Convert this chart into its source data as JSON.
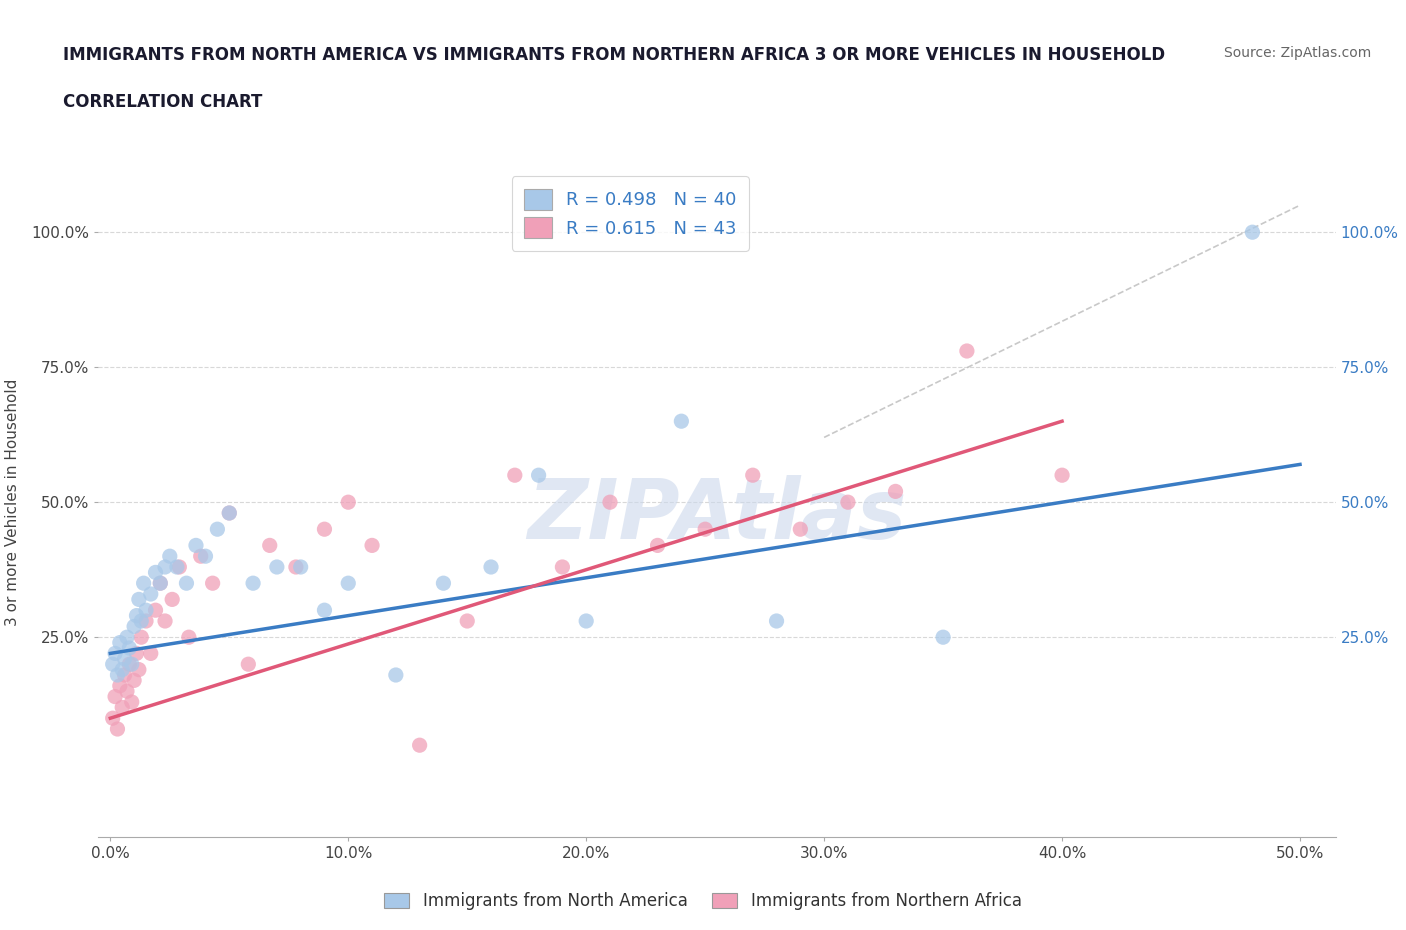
{
  "title_line1": "IMMIGRANTS FROM NORTH AMERICA VS IMMIGRANTS FROM NORTHERN AFRICA 3 OR MORE VEHICLES IN HOUSEHOLD",
  "title_line2": "CORRELATION CHART",
  "source_text": "Source: ZipAtlas.com",
  "ylabel": "3 or more Vehicles in Household",
  "xlim": [
    -0.005,
    0.515
  ],
  "ylim": [
    -0.12,
    1.12
  ],
  "xtick_labels": [
    "0.0%",
    "10.0%",
    "20.0%",
    "30.0%",
    "40.0%",
    "50.0%"
  ],
  "xtick_vals": [
    0.0,
    0.1,
    0.2,
    0.3,
    0.4,
    0.5
  ],
  "ytick_labels": [
    "25.0%",
    "50.0%",
    "75.0%",
    "100.0%"
  ],
  "ytick_vals": [
    0.25,
    0.5,
    0.75,
    1.0
  ],
  "R_blue": 0.498,
  "N_blue": 40,
  "R_pink": 0.615,
  "N_pink": 43,
  "blue_color": "#a8c8e8",
  "pink_color": "#f0a0b8",
  "blue_line_color": "#3a7cc4",
  "pink_line_color": "#e05878",
  "right_tick_color": "#3a7cc4",
  "legend_blue_label": "Immigrants from North America",
  "legend_pink_label": "Immigrants from Northern Africa",
  "watermark_text": "ZIPAtlas",
  "watermark_color": "#ccd8ec",
  "background_color": "#ffffff",
  "grid_color": "#d8d8d8",
  "blue_scatter_x": [
    0.001,
    0.002,
    0.003,
    0.004,
    0.005,
    0.006,
    0.007,
    0.008,
    0.009,
    0.01,
    0.011,
    0.012,
    0.013,
    0.014,
    0.015,
    0.017,
    0.019,
    0.021,
    0.023,
    0.025,
    0.028,
    0.032,
    0.036,
    0.04,
    0.045,
    0.05,
    0.06,
    0.07,
    0.08,
    0.09,
    0.1,
    0.12,
    0.14,
    0.16,
    0.18,
    0.2,
    0.24,
    0.28,
    0.35,
    0.48
  ],
  "blue_scatter_y": [
    0.2,
    0.22,
    0.18,
    0.24,
    0.19,
    0.21,
    0.25,
    0.23,
    0.2,
    0.27,
    0.29,
    0.32,
    0.28,
    0.35,
    0.3,
    0.33,
    0.37,
    0.35,
    0.38,
    0.4,
    0.38,
    0.35,
    0.42,
    0.4,
    0.45,
    0.48,
    0.35,
    0.38,
    0.38,
    0.3,
    0.35,
    0.18,
    0.35,
    0.38,
    0.55,
    0.28,
    0.65,
    0.28,
    0.25,
    1.0
  ],
  "pink_scatter_x": [
    0.001,
    0.002,
    0.003,
    0.004,
    0.005,
    0.006,
    0.007,
    0.008,
    0.009,
    0.01,
    0.011,
    0.012,
    0.013,
    0.015,
    0.017,
    0.019,
    0.021,
    0.023,
    0.026,
    0.029,
    0.033,
    0.038,
    0.043,
    0.05,
    0.058,
    0.067,
    0.078,
    0.09,
    0.1,
    0.11,
    0.13,
    0.15,
    0.17,
    0.19,
    0.21,
    0.23,
    0.25,
    0.27,
    0.29,
    0.31,
    0.33,
    0.36,
    0.4
  ],
  "pink_scatter_y": [
    0.1,
    0.14,
    0.08,
    0.16,
    0.12,
    0.18,
    0.15,
    0.2,
    0.13,
    0.17,
    0.22,
    0.19,
    0.25,
    0.28,
    0.22,
    0.3,
    0.35,
    0.28,
    0.32,
    0.38,
    0.25,
    0.4,
    0.35,
    0.48,
    0.2,
    0.42,
    0.38,
    0.45,
    0.5,
    0.42,
    0.05,
    0.28,
    0.55,
    0.38,
    0.5,
    0.42,
    0.45,
    0.55,
    0.45,
    0.5,
    0.52,
    0.78,
    0.55
  ],
  "blue_line_x0": 0.0,
  "blue_line_x1": 0.5,
  "blue_line_y0": 0.22,
  "blue_line_y1": 0.57,
  "pink_line_x0": 0.0,
  "pink_line_x1": 0.4,
  "pink_line_y0": 0.1,
  "pink_line_y1": 0.65,
  "dash_line_x0": 0.3,
  "dash_line_x1": 0.5,
  "dash_line_y0": 0.62,
  "dash_line_y1": 1.05
}
